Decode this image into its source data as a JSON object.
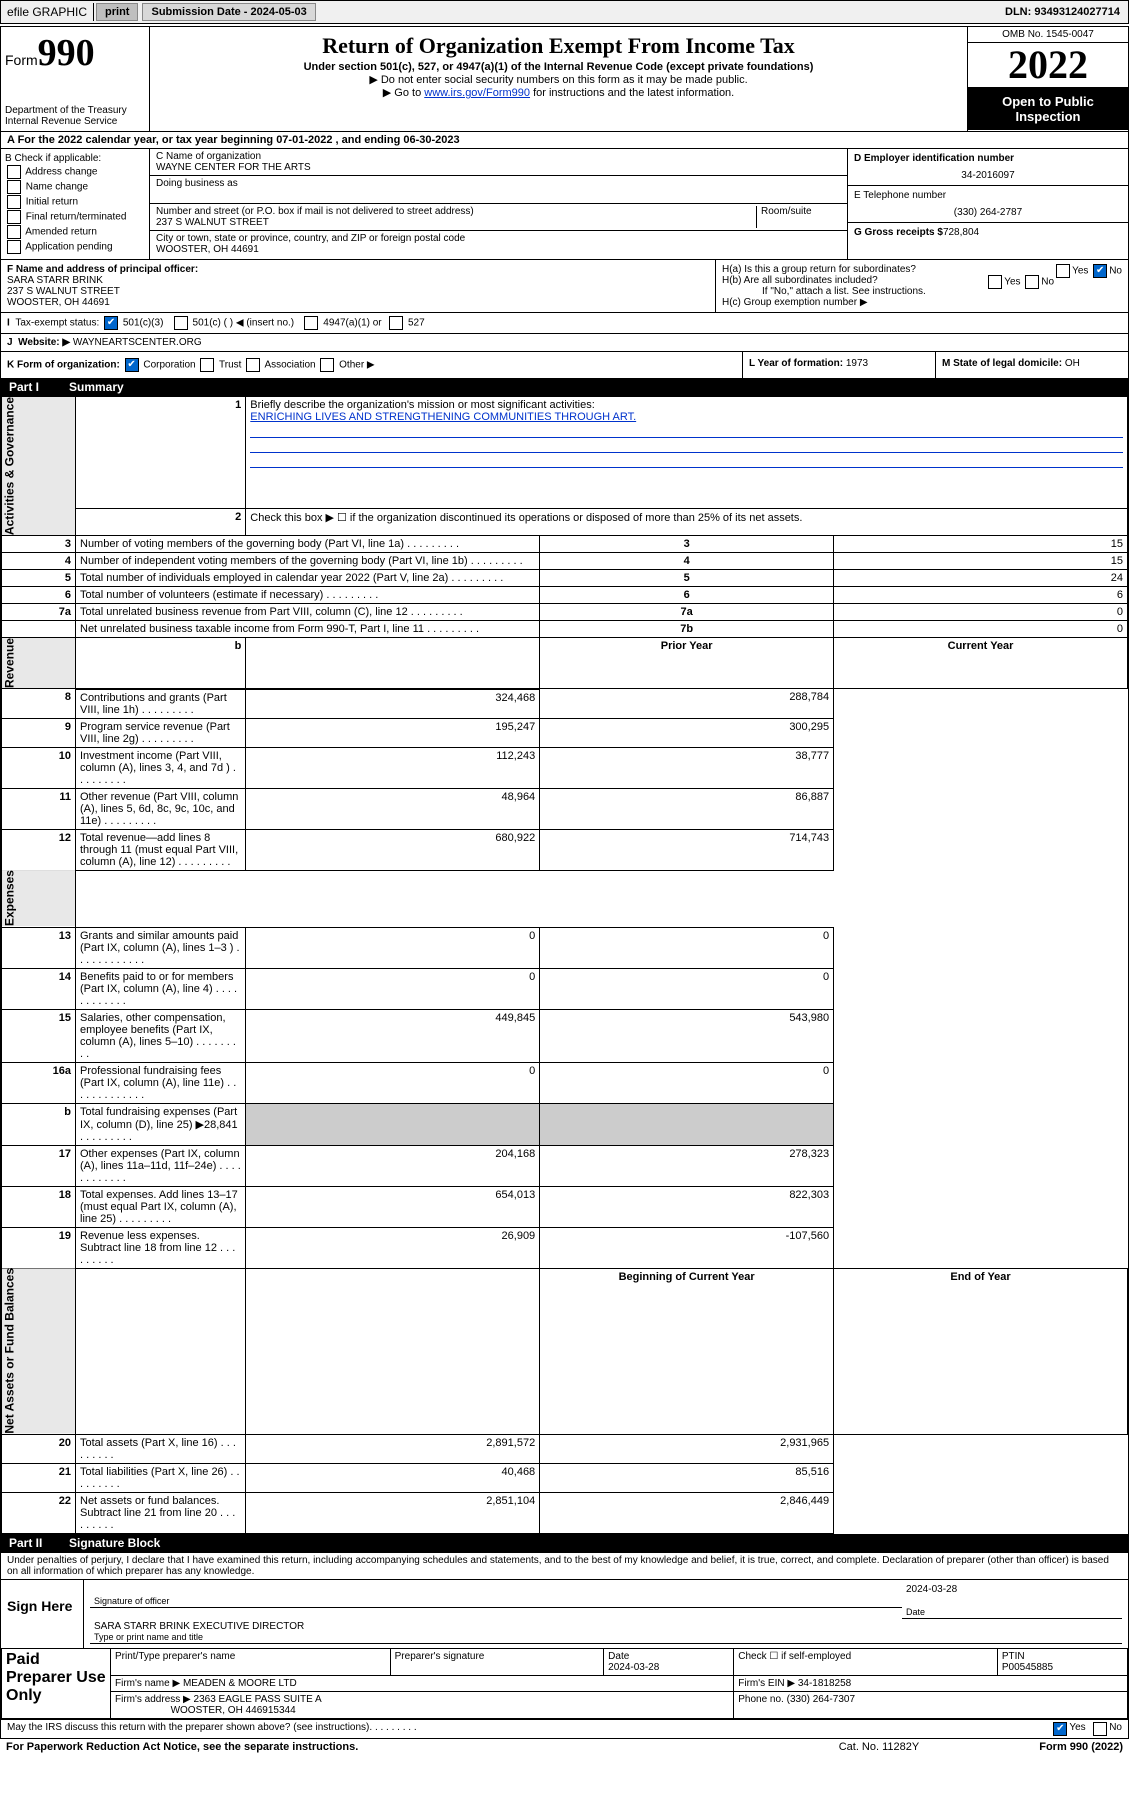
{
  "topbar": {
    "efile": "efile GRAPHIC",
    "print": "print",
    "sub_date_label": "Submission Date - 2024-05-03",
    "dln": "DLN: 93493124027714"
  },
  "header": {
    "form_word": "Form",
    "form_no": "990",
    "title": "Return of Organization Exempt From Income Tax",
    "sub1": "Under section 501(c), 527, or 4947(a)(1) of the Internal Revenue Code (except private foundations)",
    "sub2": "▶ Do not enter social security numbers on this form as it may be made public.",
    "sub3_pre": "▶ Go to ",
    "sub3_link": "www.irs.gov/Form990",
    "sub3_post": " for instructions and the latest information.",
    "dept": "Department of the Treasury\nInternal Revenue Service",
    "omb": "OMB No. 1545-0047",
    "year": "2022",
    "open": "Open to Public Inspection"
  },
  "row_a": "A For the 2022 calendar year, or tax year beginning 07-01-2022   , and ending 06-30-2023",
  "col_b": {
    "label": "B Check if applicable:",
    "items": [
      "Address change",
      "Name change",
      "Initial return",
      "Final return/terminated",
      "Amended return",
      "Application pending"
    ]
  },
  "col_c": {
    "name_label": "C Name of organization",
    "name": "WAYNE CENTER FOR THE ARTS",
    "dba_label": "Doing business as",
    "street_label": "Number and street (or P.O. box if mail is not delivered to street address)",
    "room_label": "Room/suite",
    "street": "237 S WALNUT STREET",
    "city_label": "City or town, state or province, country, and ZIP or foreign postal code",
    "city": "WOOSTER, OH  44691"
  },
  "col_d": {
    "ein_label": "D Employer identification number",
    "ein": "34-2016097",
    "phone_label": "E Telephone number",
    "phone": "(330) 264-2787",
    "gross_label": "G Gross receipts $",
    "gross": "728,804"
  },
  "row_f": {
    "label": "F  Name and address of principal officer:",
    "name": "SARA STARR BRINK",
    "addr1": "237 S WALNUT STREET",
    "addr2": "WOOSTER, OH  44691"
  },
  "row_h": {
    "ha": "H(a)  Is this a group return for subordinates?",
    "hb": "H(b)  Are all subordinates included?",
    "hnote": "If \"No,\" attach a list. See instructions.",
    "hc": "H(c)  Group exemption number ▶"
  },
  "row_i": {
    "label": "Tax-exempt status:",
    "opts": [
      "501(c)(3)",
      "501(c) (  ) ◀ (insert no.)",
      "4947(a)(1) or",
      "527"
    ]
  },
  "row_j": {
    "label": "Website: ▶",
    "val": "WAYNEARTSCENTER.ORG"
  },
  "row_k": {
    "label": "K Form of organization:",
    "opts": [
      "Corporation",
      "Trust",
      "Association",
      "Other ▶"
    ]
  },
  "row_l": {
    "label": "L Year of formation:",
    "val": "1973"
  },
  "row_m": {
    "label": "M State of legal domicile:",
    "val": "OH"
  },
  "part1": {
    "title": "Part I",
    "name": "Summary"
  },
  "summary": {
    "q1": "Briefly describe the organization's mission or most significant activities:",
    "mission": "ENRICHING LIVES AND STRENGTHENING COMMUNITIES THROUGH ART.",
    "q2": "Check this box ▶ ☐  if the organization discontinued its operations or disposed of more than 25% of its net assets.",
    "rows_single": [
      {
        "n": "3",
        "t": "Number of voting members of the governing body (Part VI, line 1a)",
        "box": "3",
        "v": "15"
      },
      {
        "n": "4",
        "t": "Number of independent voting members of the governing body (Part VI, line 1b)",
        "box": "4",
        "v": "15"
      },
      {
        "n": "5",
        "t": "Total number of individuals employed in calendar year 2022 (Part V, line 2a)",
        "box": "5",
        "v": "24"
      },
      {
        "n": "6",
        "t": "Total number of volunteers (estimate if necessary)",
        "box": "6",
        "v": "6"
      },
      {
        "n": "7a",
        "t": "Total unrelated business revenue from Part VIII, column (C), line 12",
        "box": "7a",
        "v": "0"
      },
      {
        "n": "",
        "t": "Net unrelated business taxable income from Form 990-T, Part I, line 11",
        "box": "7b",
        "v": "0"
      }
    ],
    "col_hdr_prior": "Prior Year",
    "col_hdr_curr": "Current Year",
    "revenue": [
      {
        "n": "8",
        "t": "Contributions and grants (Part VIII, line 1h)",
        "p": "324,468",
        "c": "288,784"
      },
      {
        "n": "9",
        "t": "Program service revenue (Part VIII, line 2g)",
        "p": "195,247",
        "c": "300,295"
      },
      {
        "n": "10",
        "t": "Investment income (Part VIII, column (A), lines 3, 4, and 7d )",
        "p": "112,243",
        "c": "38,777"
      },
      {
        "n": "11",
        "t": "Other revenue (Part VIII, column (A), lines 5, 6d, 8c, 9c, 10c, and 11e)",
        "p": "48,964",
        "c": "86,887"
      },
      {
        "n": "12",
        "t": "Total revenue—add lines 8 through 11 (must equal Part VIII, column (A), line 12)",
        "p": "680,922",
        "c": "714,743"
      }
    ],
    "expenses": [
      {
        "n": "13",
        "t": "Grants and similar amounts paid (Part IX, column (A), lines 1–3 )  .   .   .",
        "p": "0",
        "c": "0"
      },
      {
        "n": "14",
        "t": "Benefits paid to or for members (Part IX, column (A), line 4)  .   .   .",
        "p": "0",
        "c": "0"
      },
      {
        "n": "15",
        "t": "Salaries, other compensation, employee benefits (Part IX, column (A), lines 5–10)",
        "p": "449,845",
        "c": "543,980"
      },
      {
        "n": "16a",
        "t": "Professional fundraising fees (Part IX, column (A), line 11e)  .   .   .   .",
        "p": "0",
        "c": "0"
      },
      {
        "n": "b",
        "t": "Total fundraising expenses (Part IX, column (D), line 25) ▶28,841",
        "p": "",
        "c": ""
      },
      {
        "n": "17",
        "t": "Other expenses (Part IX, column (A), lines 11a–11d, 11f–24e)  .   .   .",
        "p": "204,168",
        "c": "278,323"
      },
      {
        "n": "18",
        "t": "Total expenses. Add lines 13–17 (must equal Part IX, column (A), line 25)",
        "p": "654,013",
        "c": "822,303"
      },
      {
        "n": "19",
        "t": "Revenue less expenses. Subtract line 18 from line 12",
        "p": "26,909",
        "c": "-107,560"
      }
    ],
    "net_hdr_b": "Beginning of Current Year",
    "net_hdr_e": "End of Year",
    "net": [
      {
        "n": "20",
        "t": "Total assets (Part X, line 16)",
        "p": "2,891,572",
        "c": "2,931,965"
      },
      {
        "n": "21",
        "t": "Total liabilities (Part X, line 26)",
        "p": "40,468",
        "c": "85,516"
      },
      {
        "n": "22",
        "t": "Net assets or fund balances. Subtract line 21 from line 20",
        "p": "2,851,104",
        "c": "2,846,449"
      }
    ],
    "side_labels": [
      "Activities & Governance",
      "Revenue",
      "Expenses",
      "Net Assets or Fund Balances"
    ]
  },
  "part2": {
    "title": "Part II",
    "name": "Signature Block"
  },
  "penalties": "Under penalties of perjury, I declare that I have examined this return, including accompanying schedules and statements, and to the best of my knowledge and belief, it is true, correct, and complete. Declaration of preparer (other than officer) is based on all information of which preparer has any knowledge.",
  "sign": {
    "here": "Sign Here",
    "sig_label": "Signature of officer",
    "date": "2024-03-28",
    "date_label": "Date",
    "name": "SARA STARR BRINK  EXECUTIVE DIRECTOR",
    "name_label": "Type or print name and title"
  },
  "prep": {
    "title": "Paid Preparer Use Only",
    "h1": "Print/Type preparer's name",
    "h2": "Preparer's signature",
    "h3_date": "Date",
    "date": "2024-03-28",
    "h4": "Check ☐ if self-employed",
    "h5": "PTIN",
    "ptin": "P00545885",
    "firm_name_l": "Firm's name    ▶",
    "firm_name": "MEADEN & MOORE LTD",
    "firm_ein_l": "Firm's EIN ▶",
    "firm_ein": "34-1818258",
    "firm_addr_l": "Firm's address ▶",
    "firm_addr1": "2363 EAGLE PASS SUITE A",
    "firm_addr2": "WOOSTER, OH  446915344",
    "phone_l": "Phone no.",
    "phone": "(330) 264-7307"
  },
  "discuss": "May the IRS discuss this return with the preparer shown above? (see instructions)",
  "footer": {
    "paperwork": "For Paperwork Reduction Act Notice, see the separate instructions.",
    "cat": "Cat. No. 11282Y",
    "form": "Form 990 (2022)"
  },
  "yes": "Yes",
  "no": "No"
}
